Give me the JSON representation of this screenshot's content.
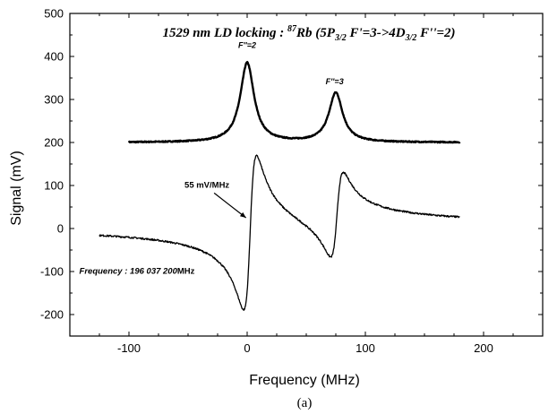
{
  "chart_data": {
    "type": "line",
    "title_main": "1529 nm LD locking : ",
    "title_sup": "87",
    "title_rest": "Rb (5P",
    "title_sub1": "3/2",
    "title_mid": " F'=3->4D",
    "title_sub2": "3/2",
    "title_end": " F''=2)",
    "xlabel": "Frequency (MHz)",
    "ylabel": "Signal (mV)",
    "xlim": [
      -150,
      250
    ],
    "ylim": [
      -250,
      500
    ],
    "xticks": [
      -100,
      0,
      100,
      200
    ],
    "yticks": [
      -200,
      -100,
      0,
      100,
      200,
      300,
      400,
      500
    ],
    "panel_label": "(a)",
    "series": [
      {
        "kind": "absorption",
        "x_range": [
          -100,
          180
        ],
        "baseline": 200,
        "peaks": [
          {
            "center": 0,
            "amplitude": 185,
            "halfwidth": 7
          },
          {
            "center": 75,
            "amplitude": 115,
            "halfwidth": 7
          }
        ]
      },
      {
        "kind": "error-signal",
        "x_range": [
          -125,
          180
        ],
        "baseline": 5,
        "dispersions": [
          {
            "center": 2.5,
            "amplitude": 180,
            "halfwidth": 5.5
          },
          {
            "center": 76,
            "amplitude": 100,
            "halfwidth": 5.5
          }
        ]
      }
    ],
    "annotations": {
      "peak1": "F''=2",
      "peak1_x": 0,
      "peak1_y": 420,
      "peak2": "F''=3",
      "peak2_x": 74,
      "peak2_y": 335,
      "slope": "55 mV/MHz",
      "slope_x": -34,
      "slope_y": 95,
      "slope_target_x": -1,
      "slope_target_y": 25,
      "frequency_label": "Frequency : ",
      "frequency_value": "196 037 200",
      "frequency_unit": "MHz",
      "frequency_x": -142,
      "frequency_y": -105
    }
  }
}
